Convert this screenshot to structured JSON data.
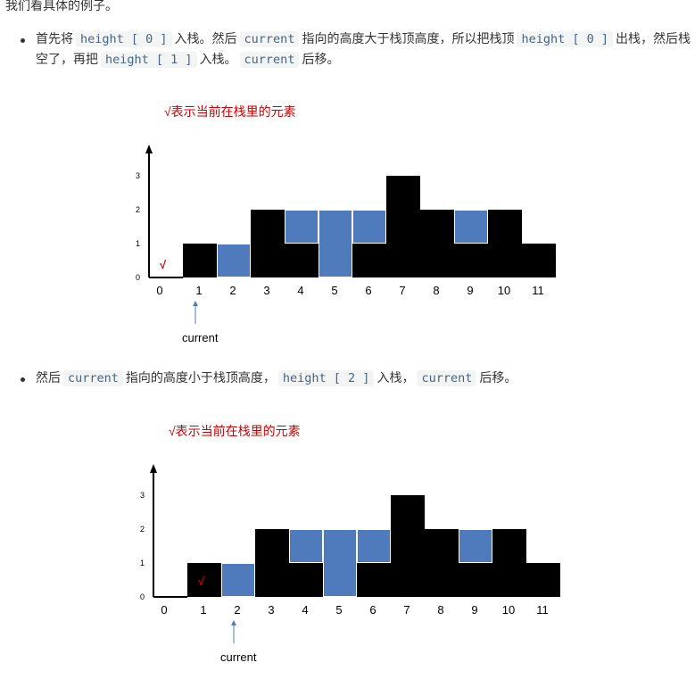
{
  "intro": "我们看具体的例子。",
  "steps": [
    {
      "text_parts": [
        {
          "type": "text",
          "value": "首先将"
        },
        {
          "type": "code",
          "value": "height [ 0 ]"
        },
        {
          "type": "text",
          "value": "入栈。然后"
        },
        {
          "type": "code",
          "value": "current"
        },
        {
          "type": "text",
          "value": "指向的高度大于栈顶高度，所以把栈顶"
        },
        {
          "type": "code",
          "value": "height [ 0 ]"
        },
        {
          "type": "text",
          "value": "出栈，然后栈空了，再把"
        },
        {
          "type": "code",
          "value": "height [ 1 ]"
        },
        {
          "type": "text",
          "value": "入栈。"
        },
        {
          "type": "code",
          "value": "current"
        },
        {
          "type": "text",
          "value": "后移。"
        }
      ]
    },
    {
      "text_parts": [
        {
          "type": "text",
          "value": "然后"
        },
        {
          "type": "code",
          "value": "current"
        },
        {
          "type": "text",
          "value": "指向的高度小于栈顶高度，"
        },
        {
          "type": "code",
          "value": "height [ 2 ]"
        },
        {
          "type": "text",
          "value": "入栈，"
        },
        {
          "type": "code",
          "value": "current"
        },
        {
          "type": "text",
          "value": "后移。"
        }
      ]
    }
  ],
  "chart_data": [
    {
      "type": "bar",
      "legend": "√表示当前在栈里的元素",
      "categories": [
        "0",
        "1",
        "2",
        "3",
        "4",
        "5",
        "6",
        "7",
        "8",
        "9",
        "10",
        "11"
      ],
      "heights": [
        0,
        1,
        0,
        2,
        1,
        0,
        1,
        3,
        2,
        1,
        2,
        1
      ],
      "water": [
        0,
        0,
        1,
        0,
        1,
        2,
        1,
        0,
        0,
        1,
        0,
        0
      ],
      "yticks": [
        "0",
        "1",
        "2",
        "3"
      ],
      "ylim": [
        0,
        4
      ],
      "stack_marks": [
        0
      ],
      "stack_mark_symbol": "√",
      "pointer_index": 1,
      "pointer_label": "current",
      "colors": {
        "bar": "#000000",
        "water": "#4f7bbd",
        "mark": "#cc0000"
      }
    },
    {
      "type": "bar",
      "legend": "√表示当前在栈里的元素",
      "categories": [
        "0",
        "1",
        "2",
        "3",
        "4",
        "5",
        "6",
        "7",
        "8",
        "9",
        "10",
        "11"
      ],
      "heights": [
        0,
        1,
        0,
        2,
        1,
        0,
        1,
        3,
        2,
        1,
        2,
        1
      ],
      "water": [
        0,
        0,
        1,
        0,
        1,
        2,
        1,
        0,
        0,
        1,
        0,
        0
      ],
      "yticks": [
        "0",
        "1",
        "2",
        "3"
      ],
      "ylim": [
        0,
        4
      ],
      "stack_marks": [
        1
      ],
      "stack_mark_symbol": "√",
      "pointer_index": 2,
      "pointer_label": "current",
      "colors": {
        "bar": "#000000",
        "water": "#4f7bbd",
        "mark": "#cc0000"
      }
    }
  ]
}
